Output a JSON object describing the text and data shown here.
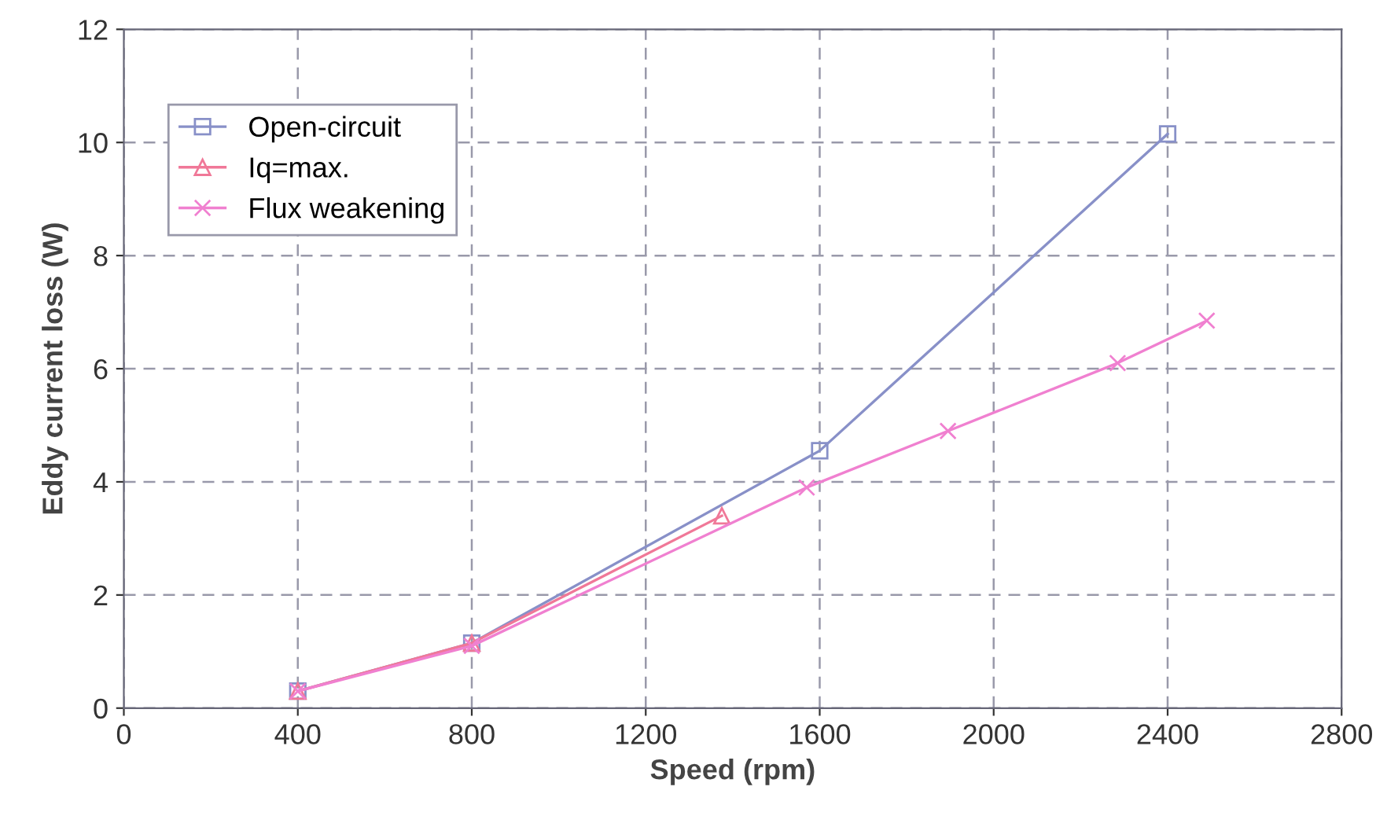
{
  "chart_data": {
    "type": "line",
    "xlabel": "Speed (rpm)",
    "ylabel": "Eddy current loss (W)",
    "xlim": [
      0,
      2800
    ],
    "xticks": [
      0,
      400,
      800,
      1200,
      1600,
      2000,
      2400,
      2800
    ],
    "ylim": [
      0,
      12
    ],
    "yticks": [
      0,
      2,
      4,
      6,
      8,
      10,
      12
    ],
    "grid": true,
    "legend": "top left",
    "series": [
      {
        "name": "Open-circuit",
        "color": "#8890c8",
        "marker": "square",
        "x": [
          400,
          800,
          1600,
          2400
        ],
        "values": [
          0.3,
          1.15,
          4.55,
          10.15
        ]
      },
      {
        "name": "Iq=max.",
        "color": "#f07898",
        "marker": "triangle",
        "x": [
          400,
          800,
          1375
        ],
        "values": [
          0.3,
          1.15,
          3.4
        ]
      },
      {
        "name": "Flux weakening",
        "color": "#f080d0",
        "marker": "cross",
        "x": [
          400,
          800,
          1570,
          1895,
          2285,
          2490
        ],
        "values": [
          0.3,
          1.1,
          3.9,
          4.9,
          6.1,
          6.85
        ]
      }
    ]
  }
}
